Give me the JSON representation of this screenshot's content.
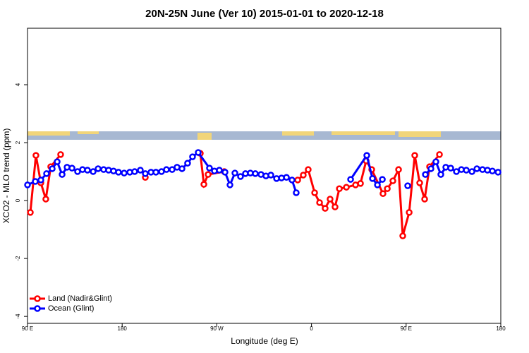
{
  "chart_data": {
    "type": "line",
    "title": "20N-25N June (Ver 10)   2015-01-01 to 2020-12-18",
    "x_label": "Longitude (deg E)",
    "y_label": "XCO2 - MLO trend (ppm)",
    "xlim": [
      90,
      540
    ],
    "xticks": [
      {
        "value": 90,
        "label": "90 E"
      },
      180,
      {
        "value": 270,
        "label": "90 W"
      },
      {
        "value": 360,
        "label": "0"
      },
      {
        "value": 450,
        "label": "90 E"
      },
      {
        "value": 540,
        "label": "180"
      }
    ],
    "ylim": [
      -4.24,
      5.95
    ],
    "yticks": [
      -4,
      -2,
      0,
      2,
      4
    ],
    "legend": "bottom-left",
    "series": [
      {
        "name": "Land (Nadir&Glint)",
        "color": "#ff0000",
        "x": [
          92.7,
          98.0,
          102.7,
          107.4,
          112.1,
          121.5,
          160,
          202.0,
          230,
          254.3,
          257.7,
          261.7,
          277.1,
          300,
          346.9,
          352.2,
          356.9,
          363.0,
          367.7,
          373.0,
          377.7,
          382.4,
          386.5,
          393.2,
          401.9,
          406.6,
          412.0,
          417.3,
          428.0,
          432.1,
          437.4,
          442.8,
          446.8,
          452.9,
          458.2,
          462.9,
          467.6,
          472.3,
          481.7
        ],
        "values": [
          -0.41,
          1.56,
          0.61,
          0.05,
          1.17,
          1.59,
          null,
          0.8,
          null,
          1.63,
          0.56,
          0.9,
          1.0,
          null,
          0.71,
          0.88,
          1.07,
          0.27,
          -0.07,
          -0.27,
          0.05,
          -0.22,
          0.41,
          0.46,
          0.54,
          0.59,
          1.37,
          1.07,
          0.24,
          0.41,
          0.68,
          1.07,
          -1.22,
          -0.41,
          1.56,
          0.61,
          0.05,
          1.17,
          1.59
        ]
      },
      {
        "name": "Ocean (Glint)",
        "color": "#0000ff",
        "x": [
          90,
          97.4,
          102.7,
          108.1,
          113.5,
          118.2,
          122.9,
          127.6,
          132.3,
          137.6,
          142.3,
          147.0,
          152.4,
          157.1,
          162.4,
          167.1,
          171.8,
          176.5,
          181.9,
          187.3,
          191.9,
          197.3,
          202.0,
          207.4,
          212.1,
          217.4,
          222.1,
          227.5,
          232.2,
          236.9,
          242.2,
          246.9,
          252.3,
          263.0,
          267.7,
          272.4,
          277.8,
          282.5,
          287.2,
          292.5,
          297.2,
          301.9,
          306.6,
          312.0,
          316.7,
          321.4,
          326.8,
          331.5,
          336.2,
          341.5,
          345.5,
          380,
          397.2,
          412.6,
          418.0,
          422.7,
          427.4,
          440,
          451.5,
          455,
          468.3,
          473.6,
          478.3,
          483.0,
          487.7,
          492.4,
          497.8,
          502.5,
          507.2,
          512.6,
          517.3,
          522.6,
          527.3,
          532.0,
          537.4
        ],
        "values": [
          0.54,
          0.66,
          0.71,
          0.93,
          1.1,
          1.34,
          0.9,
          1.15,
          1.12,
          1.0,
          1.07,
          1.05,
          1.0,
          1.1,
          1.07,
          1.05,
          1.02,
          0.98,
          0.95,
          0.98,
          1.0,
          1.05,
          0.93,
          0.98,
          0.98,
          1.0,
          1.07,
          1.07,
          1.15,
          1.1,
          1.29,
          1.51,
          1.66,
          1.12,
          1.02,
          1.05,
          0.98,
          0.54,
          0.95,
          0.83,
          0.93,
          0.95,
          0.93,
          0.9,
          0.85,
          0.88,
          0.76,
          0.78,
          0.8,
          0.71,
          0.27,
          null,
          0.73,
          1.56,
          0.76,
          0.54,
          0.73,
          null,
          0.51,
          null,
          0.9,
          1.1,
          1.34,
          0.9,
          1.15,
          1.12,
          1.0,
          1.07,
          1.05,
          1.0,
          1.1,
          1.07,
          1.05,
          1.02,
          0.98
        ]
      }
    ]
  }
}
